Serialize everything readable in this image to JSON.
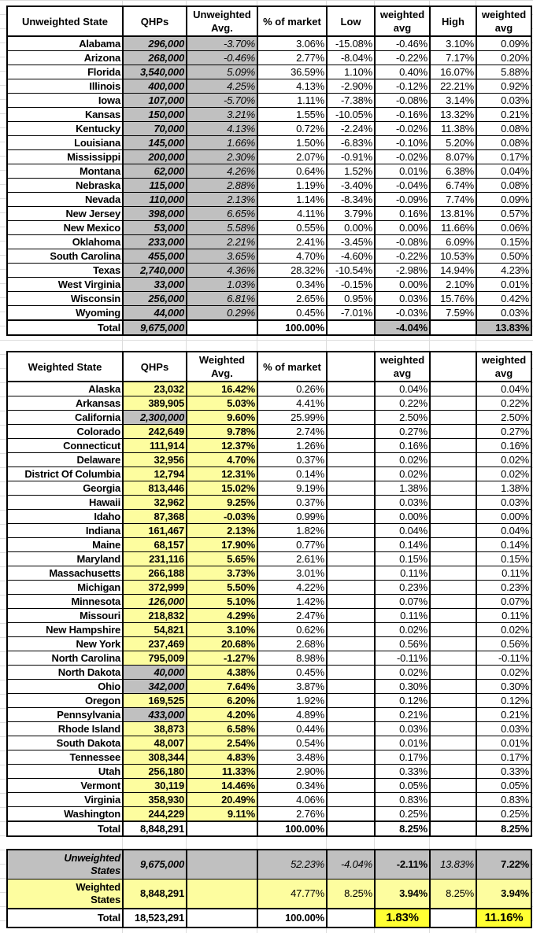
{
  "unweighted_table": {
    "headers": [
      "Unweighted State",
      "QHPs",
      "Unweighted Avg.",
      "% of market",
      "Low",
      "weighted avg",
      "High",
      "weighted avg"
    ],
    "rows": [
      [
        "Alabama",
        "296,000",
        "-3.70%",
        "3.06%",
        "-15.08%",
        "-0.46%",
        "3.10%",
        "0.09%"
      ],
      [
        "Arizona",
        "268,000",
        "-0.46%",
        "2.77%",
        "-8.04%",
        "-0.22%",
        "7.17%",
        "0.20%"
      ],
      [
        "Florida",
        "3,540,000",
        "5.09%",
        "36.59%",
        "1.10%",
        "0.40%",
        "16.07%",
        "5.88%"
      ],
      [
        "Illinois",
        "400,000",
        "4.25%",
        "4.13%",
        "-2.90%",
        "-0.12%",
        "22.21%",
        "0.92%"
      ],
      [
        "Iowa",
        "107,000",
        "-5.70%",
        "1.11%",
        "-7.38%",
        "-0.08%",
        "3.14%",
        "0.03%"
      ],
      [
        "Kansas",
        "150,000",
        "3.21%",
        "1.55%",
        "-10.05%",
        "-0.16%",
        "13.32%",
        "0.21%"
      ],
      [
        "Kentucky",
        "70,000",
        "4.13%",
        "0.72%",
        "-2.24%",
        "-0.02%",
        "11.38%",
        "0.08%"
      ],
      [
        "Louisiana",
        "145,000",
        "1.66%",
        "1.50%",
        "-6.83%",
        "-0.10%",
        "5.20%",
        "0.08%"
      ],
      [
        "Mississippi",
        "200,000",
        "2.30%",
        "2.07%",
        "-0.91%",
        "-0.02%",
        "8.07%",
        "0.17%"
      ],
      [
        "Montana",
        "62,000",
        "4.26%",
        "0.64%",
        "1.52%",
        "0.01%",
        "6.38%",
        "0.04%"
      ],
      [
        "Nebraska",
        "115,000",
        "2.88%",
        "1.19%",
        "-3.40%",
        "-0.04%",
        "6.74%",
        "0.08%"
      ],
      [
        "Nevada",
        "110,000",
        "2.13%",
        "1.14%",
        "-8.34%",
        "-0.09%",
        "7.74%",
        "0.09%"
      ],
      [
        "New Jersey",
        "398,000",
        "6.65%",
        "4.11%",
        "3.79%",
        "0.16%",
        "13.81%",
        "0.57%"
      ],
      [
        "New Mexico",
        "53,000",
        "5.58%",
        "0.55%",
        "0.00%",
        "0.00%",
        "11.66%",
        "0.06%"
      ],
      [
        "Oklahoma",
        "233,000",
        "2.21%",
        "2.41%",
        "-3.45%",
        "-0.08%",
        "6.09%",
        "0.15%"
      ],
      [
        "South Carolina",
        "455,000",
        "3.65%",
        "4.70%",
        "-4.60%",
        "-0.22%",
        "10.53%",
        "0.50%"
      ],
      [
        "Texas",
        "2,740,000",
        "4.36%",
        "28.32%",
        "-10.54%",
        "-2.98%",
        "14.94%",
        "4.23%"
      ],
      [
        "West Virginia",
        "33,000",
        "1.03%",
        "0.34%",
        "-0.15%",
        "0.00%",
        "2.10%",
        "0.01%"
      ],
      [
        "Wisconsin",
        "256,000",
        "6.81%",
        "2.65%",
        "0.95%",
        "0.03%",
        "15.76%",
        "0.42%"
      ],
      [
        "Wyoming",
        "44,000",
        "0.29%",
        "0.45%",
        "-7.01%",
        "-0.03%",
        "7.59%",
        "0.03%"
      ]
    ],
    "total": [
      "Total",
      "9,675,000",
      "",
      "100.00%",
      "",
      "-4.04%",
      "",
      "13.83%"
    ]
  },
  "weighted_table": {
    "headers": [
      "Weighted State",
      "QHPs",
      "Weighted Avg.",
      "% of market",
      "",
      "weighted avg",
      "",
      "weighted avg"
    ],
    "rows": [
      [
        "Alaska",
        "23,032",
        "16.42%",
        "0.26%",
        "",
        "0.04%",
        "",
        "0.04%"
      ],
      [
        "Arkansas",
        "389,905",
        "5.03%",
        "4.41%",
        "",
        "0.22%",
        "",
        "0.22%"
      ],
      [
        "California",
        "2,300,000",
        "9.60%",
        "25.99%",
        "",
        "2.50%",
        "",
        "2.50%"
      ],
      [
        "Colorado",
        "242,649",
        "9.78%",
        "2.74%",
        "",
        "0.27%",
        "",
        "0.27%"
      ],
      [
        "Connecticut",
        "111,914",
        "12.37%",
        "1.26%",
        "",
        "0.16%",
        "",
        "0.16%"
      ],
      [
        "Delaware",
        "32,956",
        "4.70%",
        "0.37%",
        "",
        "0.02%",
        "",
        "0.02%"
      ],
      [
        "District Of Columbia",
        "12,794",
        "12.31%",
        "0.14%",
        "",
        "0.02%",
        "",
        "0.02%"
      ],
      [
        "Georgia",
        "813,446",
        "15.02%",
        "9.19%",
        "",
        "1.38%",
        "",
        "1.38%"
      ],
      [
        "Hawaii",
        "32,962",
        "9.25%",
        "0.37%",
        "",
        "0.03%",
        "",
        "0.03%"
      ],
      [
        "Idaho",
        "87,368",
        "-0.03%",
        "0.99%",
        "",
        "0.00%",
        "",
        "0.00%"
      ],
      [
        "Indiana",
        "161,467",
        "2.13%",
        "1.82%",
        "",
        "0.04%",
        "",
        "0.04%"
      ],
      [
        "Maine",
        "68,157",
        "17.90%",
        "0.77%",
        "",
        "0.14%",
        "",
        "0.14%"
      ],
      [
        "Maryland",
        "231,116",
        "5.65%",
        "2.61%",
        "",
        "0.15%",
        "",
        "0.15%"
      ],
      [
        "Massachusetts",
        "266,188",
        "3.73%",
        "3.01%",
        "",
        "0.11%",
        "",
        "0.11%"
      ],
      [
        "Michigan",
        "372,999",
        "5.50%",
        "4.22%",
        "",
        "0.23%",
        "",
        "0.23%"
      ],
      [
        "Minnesota",
        "126,000",
        "5.10%",
        "1.42%",
        "",
        "0.07%",
        "",
        "0.07%"
      ],
      [
        "Missouri",
        "218,832",
        "4.29%",
        "2.47%",
        "",
        "0.11%",
        "",
        "0.11%"
      ],
      [
        "New Hampshire",
        "54,821",
        "3.10%",
        "0.62%",
        "",
        "0.02%",
        "",
        "0.02%"
      ],
      [
        "New York",
        "237,469",
        "20.68%",
        "2.68%",
        "",
        "0.56%",
        "",
        "0.56%"
      ],
      [
        "North Carolina",
        "795,009",
        "-1.27%",
        "8.98%",
        "",
        "-0.11%",
        "",
        "-0.11%"
      ],
      [
        "North Dakota",
        "40,000",
        "4.38%",
        "0.45%",
        "",
        "0.02%",
        "",
        "0.02%"
      ],
      [
        "Ohio",
        "342,000",
        "7.64%",
        "3.87%",
        "",
        "0.30%",
        "",
        "0.30%"
      ],
      [
        "Oregon",
        "169,525",
        "6.20%",
        "1.92%",
        "",
        "0.12%",
        "",
        "0.12%"
      ],
      [
        "Pennsylvania",
        "433,000",
        "4.20%",
        "4.89%",
        "",
        "0.21%",
        "",
        "0.21%"
      ],
      [
        "Rhode Island",
        "38,873",
        "6.58%",
        "0.44%",
        "",
        "0.03%",
        "",
        "0.03%"
      ],
      [
        "South Dakota",
        "48,007",
        "2.54%",
        "0.54%",
        "",
        "0.01%",
        "",
        "0.01%"
      ],
      [
        "Tennessee",
        "308,344",
        "4.83%",
        "3.48%",
        "",
        "0.17%",
        "",
        "0.17%"
      ],
      [
        "Utah",
        "256,180",
        "11.33%",
        "2.90%",
        "",
        "0.33%",
        "",
        "0.33%"
      ],
      [
        "Vermont",
        "30,119",
        "14.46%",
        "0.34%",
        "",
        "0.05%",
        "",
        "0.05%"
      ],
      [
        "Virginia",
        "358,930",
        "20.49%",
        "4.06%",
        "",
        "0.83%",
        "",
        "0.83%"
      ],
      [
        "Washington",
        "244,229",
        "9.11%",
        "2.76%",
        "",
        "0.25%",
        "",
        "0.25%"
      ]
    ],
    "estimated_qhp_states": [
      "California",
      "Minnesota",
      "North Dakota",
      "Ohio",
      "Pennsylvania"
    ],
    "grey_qhp_states": [
      "California",
      "North Dakota",
      "Ohio",
      "Pennsylvania"
    ],
    "total": [
      "Total",
      "8,848,291",
      "",
      "100.00%",
      "",
      "8.25%",
      "",
      "8.25%"
    ]
  },
  "summary_table": {
    "unweighted": {
      "label_1": "Unweighted",
      "label_2": "States",
      "qhps": "9,675,000",
      "market": "52.23%",
      "low": "-4.04%",
      "low_weighted": "-2.11%",
      "high": "13.83%",
      "high_weighted": "7.22%"
    },
    "weighted": {
      "label_1": "Weighted",
      "label_2": "States",
      "qhps": "8,848,291",
      "market": "47.77%",
      "low": "8.25%",
      "low_weighted": "3.94%",
      "high": "8.25%",
      "high_weighted": "3.94%"
    },
    "total": {
      "label": "Total",
      "qhps": "18,523,291",
      "market": "100.00%",
      "low_weighted": "1.83%",
      "high_weighted": "11.16%"
    }
  },
  "colors": {
    "grey_fill": "#c0c0c0",
    "yellow_fill": "#fdfd9f",
    "highlight_yellow": "#ffff33"
  }
}
